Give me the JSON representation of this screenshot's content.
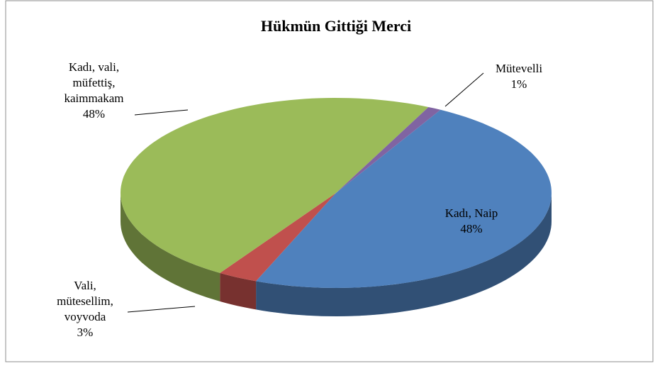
{
  "chart_data": {
    "type": "pie",
    "title": "Hükmün Gittiği Merci",
    "categories": [
      "Kadı, Naip",
      "Vali, mütesellim, voyvoda",
      "Kadı, vali, müfettiş, kaimmakam",
      "Mütevelli"
    ],
    "values": [
      48,
      3,
      48,
      1
    ],
    "value_labels": [
      "48%",
      "3%",
      "48%",
      "1%"
    ],
    "colors": [
      "#4f81bd",
      "#c0504d",
      "#9bbb59",
      "#8064a2"
    ]
  }
}
